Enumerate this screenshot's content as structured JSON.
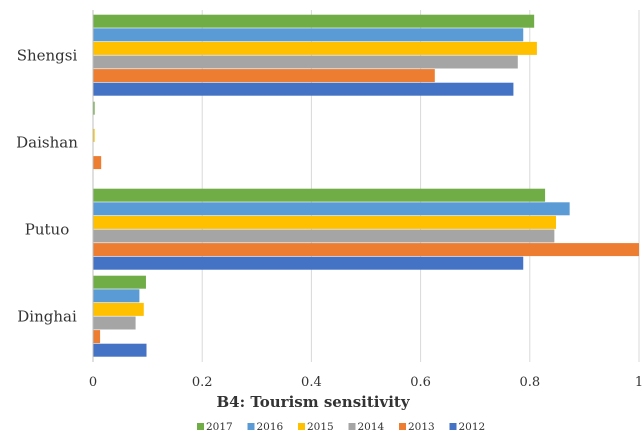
{
  "chart_data": {
    "type": "bar",
    "orientation": "horizontal",
    "categories": [
      "Dinghai",
      "Putuo",
      "Daishan",
      "Shengsi"
    ],
    "series": [
      {
        "name": "2012",
        "color": "#4472C4",
        "values": [
          0.098,
          0.788,
          0.0,
          0.77
        ]
      },
      {
        "name": "2013",
        "color": "#ED7D31",
        "values": [
          0.013,
          1.0,
          0.015,
          0.626
        ]
      },
      {
        "name": "2014",
        "color": "#A5A5A5",
        "values": [
          0.078,
          0.845,
          0.0,
          0.778
        ]
      },
      {
        "name": "2015",
        "color": "#FFC000",
        "values": [
          0.093,
          0.848,
          0.003,
          0.813
        ]
      },
      {
        "name": "2016",
        "color": "#5B9BD5",
        "values": [
          0.085,
          0.873,
          0.0,
          0.788
        ]
      },
      {
        "name": "2017",
        "color": "#70AD47",
        "values": [
          0.097,
          0.828,
          0.003,
          0.808
        ]
      }
    ],
    "xlabel": "B4: Tourism sensitivity",
    "xlim": [
      0,
      1
    ],
    "xticks": [
      "0",
      "0.2",
      "0.4",
      "0.6",
      "0.8",
      "1"
    ],
    "grid": "vertical",
    "legend": "bottom"
  }
}
